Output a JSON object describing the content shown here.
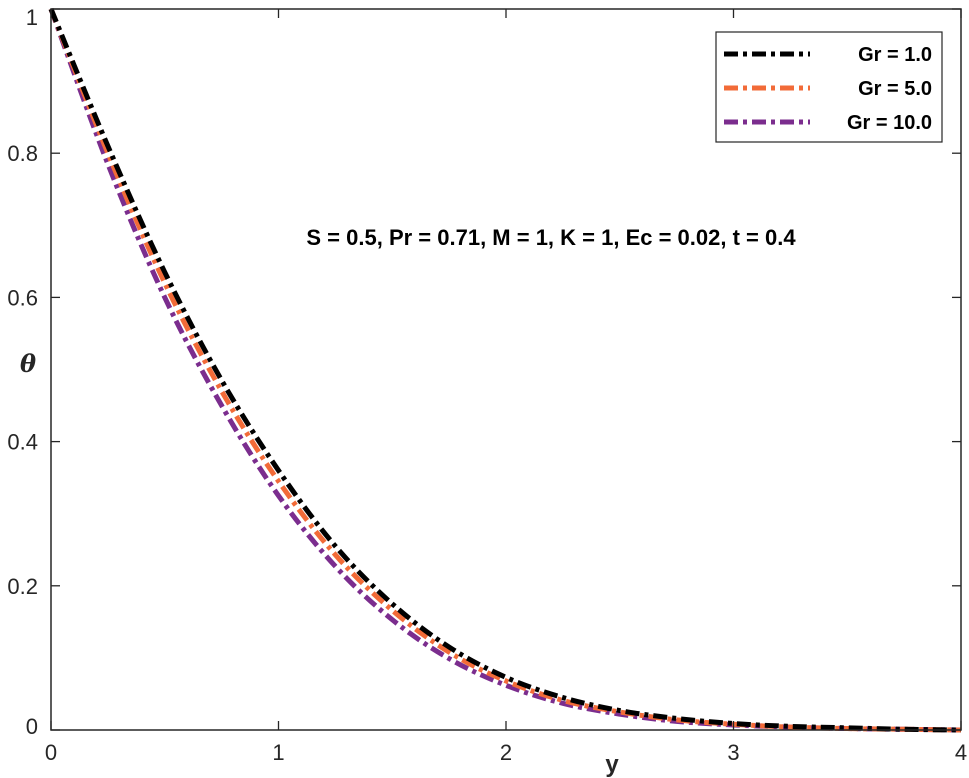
{
  "chart_data": {
    "type": "line",
    "title": "",
    "xlabel": "y",
    "ylabel": "θ",
    "xlim": [
      0,
      4
    ],
    "ylim": [
      0,
      1
    ],
    "xticks": [
      0,
      1,
      2,
      3,
      4
    ],
    "yticks": [
      0,
      0.2,
      0.4,
      0.6,
      0.8,
      1
    ],
    "xtick_labels": [
      "0",
      "1",
      "2",
      "3",
      "4"
    ],
    "ytick_labels": [
      "0",
      "0.2",
      "0.4",
      "0.6",
      "0.8",
      "1"
    ],
    "grid": false,
    "legend_position": "top-right",
    "annotation": "S = 0.5, Pr = 0.71, M = 1, K = 1, Ec = 0.02, t = 0.4",
    "x": [
      0,
      0.25,
      0.5,
      0.75,
      1.0,
      1.25,
      1.5,
      1.75,
      2.0,
      2.25,
      2.5,
      2.75,
      3.0,
      3.25,
      3.5,
      3.75,
      4.0
    ],
    "series": [
      {
        "name": "Gr = 1.0",
        "color": "#000000",
        "values": [
          1.0,
          0.81,
          0.635,
          0.485,
          0.36,
          0.255,
          0.175,
          0.115,
          0.073,
          0.045,
          0.027,
          0.016,
          0.009,
          0.005,
          0.003,
          0.001,
          0.0
        ]
      },
      {
        "name": "Gr = 5.0",
        "color": "#f26b38",
        "values": [
          1.0,
          0.8,
          0.62,
          0.47,
          0.345,
          0.243,
          0.166,
          0.108,
          0.068,
          0.041,
          0.025,
          0.014,
          0.008,
          0.004,
          0.002,
          0.001,
          0.0
        ]
      },
      {
        "name": "Gr = 10.0",
        "color": "#7b2d8e",
        "values": [
          1.0,
          0.785,
          0.6,
          0.45,
          0.325,
          0.227,
          0.153,
          0.099,
          0.062,
          0.037,
          0.022,
          0.012,
          0.007,
          0.004,
          0.002,
          0.001,
          0.0
        ]
      }
    ]
  }
}
